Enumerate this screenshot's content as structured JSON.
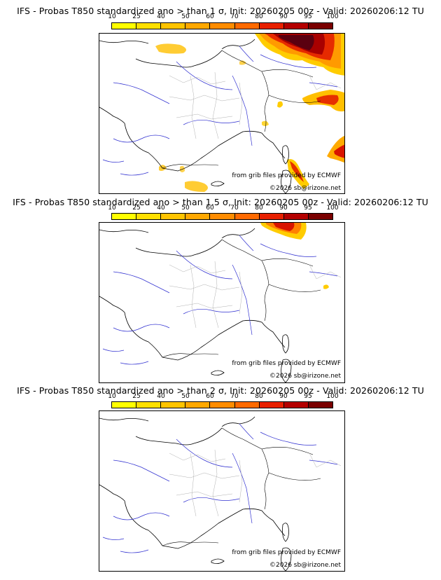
{
  "colorbar": {
    "ticks": [
      "10",
      "25",
      "40",
      "50",
      "60",
      "70",
      "80",
      "90",
      "95",
      "100"
    ],
    "colors": [
      "#ffff00",
      "#ffe000",
      "#ffc400",
      "#ffa800",
      "#ff8c00",
      "#ff6a00",
      "#e82000",
      "#b40000",
      "#7a0000"
    ]
  },
  "credits": {
    "source": "from grib files provided by ECMWF",
    "copyright": "©2026 sb@irizone.net"
  },
  "panels": [
    {
      "title": "IFS - Probas T850  standardized ano > than 1 σ, Init: 20260205 00z - Valid: 20260206:12 TU"
    },
    {
      "title": "IFS - Probas T850  standardized ano > than 1.5 σ, Init: 20260205 00z - Valid: 20260206:12 TU"
    },
    {
      "title": "IFS - Probas T850  standardized ano > than 2 σ, Init: 20260205 00z - Valid: 20260206:12 TU"
    }
  ]
}
